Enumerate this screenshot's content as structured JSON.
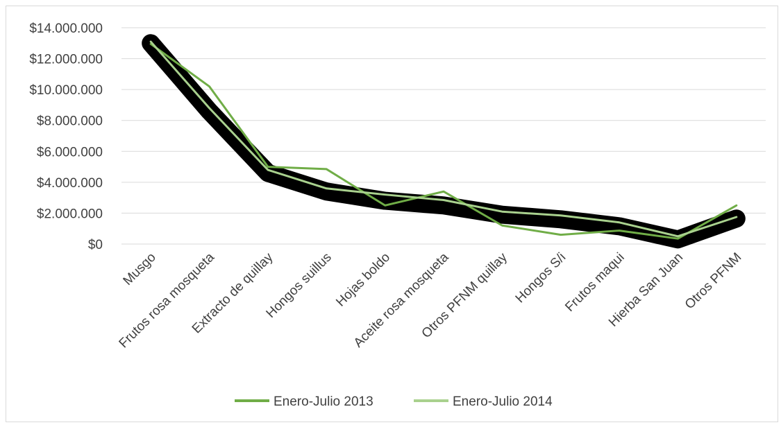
{
  "chart_data": {
    "type": "line",
    "title": "",
    "xlabel": "",
    "ylabel": "",
    "categories": [
      "Musgo",
      "Frutos rosa mosqueta",
      "Extracto de quillay",
      "Hongos suillus",
      "Hojas boldo",
      "Aceite rosa mosqueta",
      "Otros PFNM quillay",
      "Hongos S/i",
      "Frutos maqui",
      "Hierba San Juan",
      "Otros PFNM"
    ],
    "ylim": [
      0,
      14000000
    ],
    "yticks": [
      0,
      2000000,
      4000000,
      6000000,
      8000000,
      10000000,
      12000000,
      14000000
    ],
    "ytick_labels": [
      "$0",
      "$2.000.000",
      "$4.000.000",
      "$6.000.000",
      "$8.000.000",
      "$10.000.000",
      "$12.000.000",
      "$14.000.000"
    ],
    "grid": true,
    "legend_position": "bottom",
    "series": [
      {
        "name": "Enero-Julio 2013",
        "color": "#70ad47",
        "values": [
          12950000,
          10200000,
          5000000,
          4850000,
          2500000,
          3400000,
          1200000,
          600000,
          870000,
          350000,
          2500000
        ]
      },
      {
        "name": "Enero-Julio 2014",
        "color": "#a9d18e",
        "values": [
          13100000,
          8800000,
          4800000,
          3600000,
          3200000,
          2850000,
          2100000,
          1850000,
          1400000,
          500000,
          1750000
        ]
      }
    ],
    "trend_band": {
      "color": "#000000",
      "values": [
        13000000,
        8600000,
        4600000,
        3400000,
        2800000,
        2500000,
        1900000,
        1600000,
        1150000,
        300000,
        1650000
      ]
    }
  }
}
